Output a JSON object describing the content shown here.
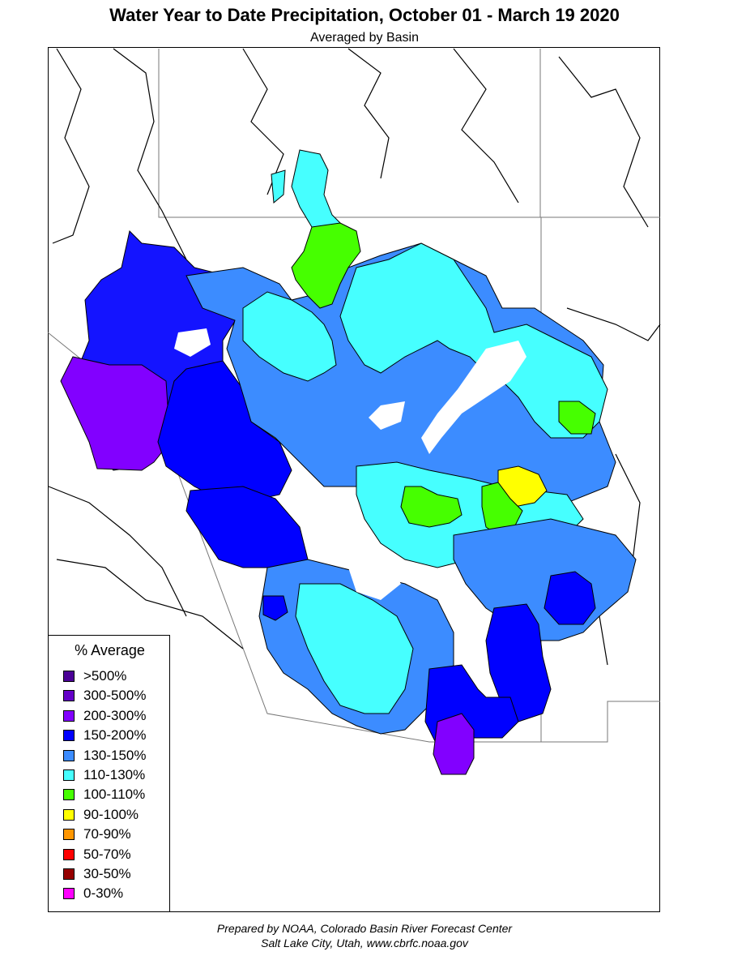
{
  "title": "Water Year to Date Precipitation, October 01  - March 19 2020",
  "subtitle": "Averaged by Basin",
  "legend": {
    "title": "% Average",
    "items": [
      {
        "label": ">500%",
        "color": "#4b0096"
      },
      {
        "label": "300-500%",
        "color": "#6400c8"
      },
      {
        "label": "200-300%",
        "color": "#8200ff"
      },
      {
        "label": "150-200%",
        "color": "#0000ff"
      },
      {
        "label": "130-150%",
        "color": "#3c8cff"
      },
      {
        "label": "110-130%",
        "color": "#46ffff"
      },
      {
        "label": "100-110%",
        "color": "#46ff00"
      },
      {
        "label": "90-100%",
        "color": "#ffff00"
      },
      {
        "label": "70-90%",
        "color": "#ff9600"
      },
      {
        "label": "50-70%",
        "color": "#ff0000"
      },
      {
        "label": "30-50%",
        "color": "#960000"
      },
      {
        "label": "0-30%",
        "color": "#ff00ff"
      }
    ]
  },
  "footer": {
    "line1": "Prepared by NOAA, Colorado Basin River Forecast Center",
    "line2": "Salt Lake City, Utah, www.cbrfc.noaa.gov"
  }
}
